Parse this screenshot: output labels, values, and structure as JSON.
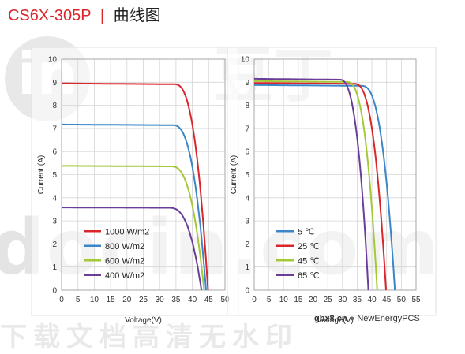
{
  "header": {
    "model": "CS6X-305P",
    "separator": "|",
    "subtitle": "曲线图"
  },
  "watermark": {
    "logo_text": "in",
    "chinese_top": "豆丁",
    "domain": "docin.com",
    "chinese_bottom": "下载文档高清无水印"
  },
  "footer_watermark": {
    "site": "gbx8.cn",
    "handle": "NewEnergyPCS"
  },
  "chart_data": [
    {
      "type": "line",
      "xlabel": "Voltage(V)",
      "ylabel": "Current (A)",
      "xlim": [
        0,
        50
      ],
      "ylim": [
        0,
        10
      ],
      "xticks": [
        0,
        5,
        10,
        15,
        20,
        25,
        30,
        35,
        40,
        45,
        50
      ],
      "yticks": [
        0,
        1,
        2,
        3,
        4,
        5,
        6,
        7,
        8,
        9,
        10
      ],
      "grid": true,
      "legend_position": "bottom-left",
      "series": [
        {
          "name": "1000 W/m2",
          "color": "#d9262c",
          "isc": 8.95,
          "voc": 44.8,
          "v_knee": 34.5
        },
        {
          "name": "800 W/m2",
          "color": "#3b86c8",
          "isc": 7.17,
          "voc": 44.2,
          "v_knee": 34.0
        },
        {
          "name": "600 W/m2",
          "color": "#a5c73a",
          "isc": 5.38,
          "voc": 43.6,
          "v_knee": 33.5
        },
        {
          "name": "400 W/m2",
          "color": "#6a3e98",
          "isc": 3.58,
          "voc": 42.8,
          "v_knee": 33.0
        }
      ]
    },
    {
      "type": "line",
      "xlabel": "Voltage(V)",
      "ylabel": "Current (A)",
      "xlim": [
        0,
        55
      ],
      "ylim": [
        0,
        10
      ],
      "xticks": [
        0,
        5,
        10,
        15,
        20,
        25,
        30,
        35,
        40,
        45,
        50,
        55
      ],
      "yticks": [
        0,
        1,
        2,
        3,
        4,
        5,
        6,
        7,
        8,
        9,
        10
      ],
      "grid": true,
      "legend_position": "bottom-left",
      "series": [
        {
          "name": "5 ℃",
          "color": "#3b86c8",
          "isc": 8.88,
          "voc": 47.8,
          "v_knee": 36.5
        },
        {
          "name": "25 ℃",
          "color": "#d9262c",
          "isc": 8.97,
          "voc": 44.8,
          "v_knee": 34.0
        },
        {
          "name": "45 ℃",
          "color": "#a5c73a",
          "isc": 9.05,
          "voc": 41.8,
          "v_knee": 31.5
        },
        {
          "name": "65 ℃",
          "color": "#6a3e98",
          "isc": 9.15,
          "voc": 38.8,
          "v_knee": 29.0
        }
      ]
    }
  ]
}
